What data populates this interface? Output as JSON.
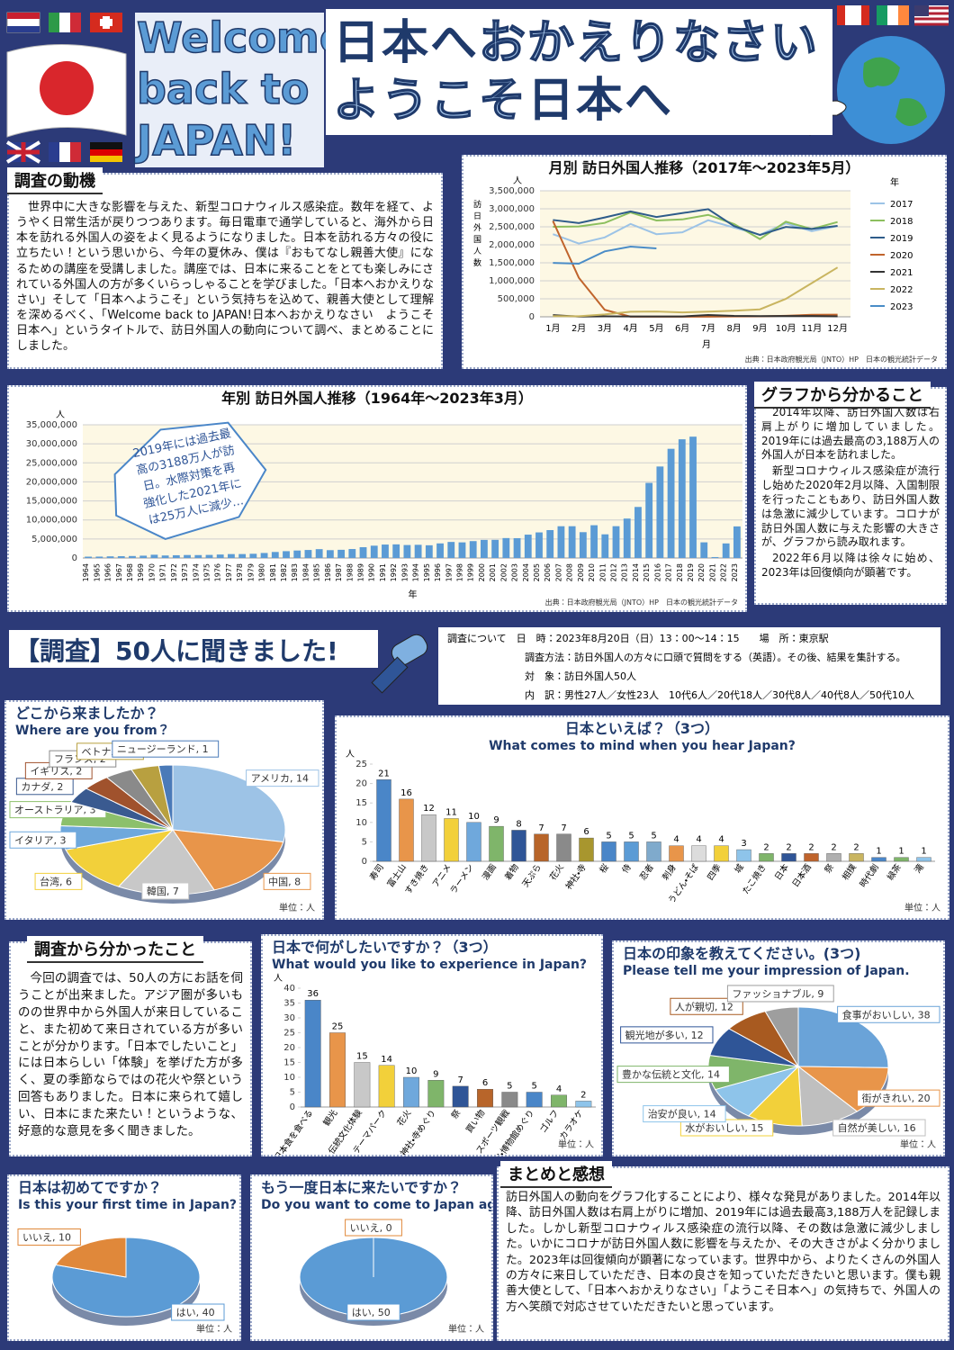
{
  "header": {
    "title_en": [
      "Welcome",
      "back to",
      "JAPAN!"
    ],
    "title_jp": [
      [
        "日本へ",
        "おかえりなさい"
      ],
      [
        "ようこそ",
        "日本へ"
      ]
    ]
  },
  "motive": {
    "heading": "調査の動機",
    "text": "世界中に大きな影響を与えた、新型コロナウィルス感染症。数年を経て、ようやく日常生活が戻りつつあります。毎日電車で通学していると、海外から日本を訪れる外国人の姿をよく見るようになりました。日本を訪れる方々の役に立ちたい！という思いから、今年の夏休み、僕は『おもてなし親善大使』になるための講座を受講しました。講座では、日本に来ることをとても楽しみにされている外国人の方が多くいらっしゃることを学びました。「日本へおかえりなさい」そして「日本へようこそ」という気持ちを込めて、親善大使として理解を深めるべく、「Welcome back to JAPAN!日本へおかえりなさい　ようこそ日本へ」というタイトルで、訪日外国人の動向について調べ、まとめることにしました。"
  },
  "graph_findings": {
    "heading": "グラフから分かること",
    "paragraphs": [
      "2014年以降、訪日外国人数は右肩上がりに増加していました。2019年には過去最高の3,188万人の外国人が日本を訪れました。",
      "新型コロナウィルス感染症が流行し始めた2020年2月以降、入国制限を行ったこともあり、訪日外国人数は急激に減少しています。コロナが訪日外国人数に与えた影響の大きさが、グラフから読み取れます。",
      "2022年6月以降は徐々に始め、2023年は回復傾向が顕著です。"
    ]
  },
  "survey": {
    "heading": "【調査】50人に聞きました!",
    "rows": [
      "調査について　日　時：2023年8月20日（日）13：00～14：15　　場　所：東京駅",
      "調査方法：訪日外国人の方々に口頭で質問をする（英語）。その後、結果を集計する。",
      "対　象：訪日外国人50人",
      "内　訳：男性27人／女性23人　10代6人／20代18人／30代8人／40代8人／50代10人"
    ]
  },
  "survey_findings": {
    "heading": "調査から分かったこと",
    "text": "今回の調査では、50人の方にお話を伺うことが出来ました。アジア圏が多いものの世界中から外国人が来日していること、また初めて来日されている方が多いことが分かります。「日本でしたいこと」には日本らしい「体験」を挙げた方が多く、夏の季節ならではの花火や祭という回答もありました。日本に来られて嬉しい、日本にまた来たい！というような、好意的な意見を多く聞きました。"
  },
  "summary": {
    "heading": "まとめと感想",
    "text": "訪日外国人の動向をグラフ化することにより、様々な発見がありました。2014年以降、訪日外国人数は右肩上がりに増加、2019年には過去最高3,188万人を記録しました。しかし新型コロナウィルス感染症の流行以降、その数は急激に減少しました。いかにコロナが訪日外国人数に影響を与えたか、その大きさがよく分かりました。2023年は回復傾向が顕著になっています。世界中から、よりたくさんの外国人の方々に来日していただき、日本の良さを知っていただきたいと思います。僕も親善大使として、「日本へおかえりなさい」「ようこそ日本へ」の気持ちで、外国人の方へ笑顔で対応させていただきたいと思っています。"
  },
  "chart_data": [
    {
      "type": "line",
      "title": "月別 訪日外国人推移（2017年～2023年5月）",
      "y_label": "訪日外国人数",
      "y_unit": "人",
      "x_label": "月",
      "legend_title": "年",
      "source": "出典：日本政府観光局（JNTO）HP　日本の観光統計データ",
      "grid": true,
      "legend": "right",
      "categories": [
        "1月",
        "2月",
        "3月",
        "4月",
        "5月",
        "6月",
        "7月",
        "8月",
        "9月",
        "10月",
        "11月",
        "12月"
      ],
      "ylim": [
        0,
        3500000
      ],
      "yticks": [
        0,
        {
          "value": 500000,
          "label": "500,000"
        },
        {
          "value": 1000000,
          "label": "1,000,000"
        },
        {
          "value": 1500000,
          "label": "1,500,000"
        },
        {
          "value": 2000000,
          "label": "2,000,000"
        },
        {
          "value": 2500000,
          "label": "2,500,000"
        },
        {
          "value": 3000000,
          "label": "3,000,000"
        },
        {
          "value": 3500000,
          "label": "3,500,000"
        }
      ],
      "series": [
        {
          "name": "2017",
          "color": "#9cc3e6",
          "values": [
            2295000,
            2036000,
            2205000,
            2579000,
            2295000,
            2346000,
            2682000,
            2478000,
            2280000,
            2595000,
            2378000,
            2521000
          ]
        },
        {
          "name": "2018",
          "color": "#8cbf5e",
          "values": [
            2501000,
            2509000,
            2608000,
            2900000,
            2675000,
            2705000,
            2832000,
            2578000,
            2159000,
            2641000,
            2439000,
            2632000
          ]
        },
        {
          "name": "2019",
          "color": "#2e5c8a",
          "values": [
            2689000,
            2604000,
            2760000,
            2927000,
            2773000,
            2880000,
            2991000,
            2520000,
            2272000,
            2497000,
            2441000,
            2526000
          ]
        },
        {
          "name": "2020",
          "color": "#c0642c",
          "values": [
            2661000,
            1085000,
            194000,
            2900,
            1700,
            2600,
            3800,
            8700,
            13700,
            27400,
            56700,
            58700
          ]
        },
        {
          "name": "2021",
          "color": "#333333",
          "values": [
            46500,
            7400,
            12300,
            10900,
            10000,
            9300,
            51100,
            25900,
            17700,
            22100,
            20700,
            12100
          ]
        },
        {
          "name": "2022",
          "color": "#c9b560",
          "values": [
            17800,
            16700,
            66100,
            139500,
            147000,
            120400,
            144500,
            169900,
            206600,
            498600,
            934500,
            1370100
          ]
        },
        {
          "name": "2023",
          "color": "#4a8cc7",
          "values": [
            1497300,
            1475300,
            1817500,
            1949100,
            1898900,
            null,
            null,
            null,
            null,
            null,
            null,
            null
          ]
        }
      ]
    },
    {
      "type": "bar",
      "title": "年別 訪日外国人推移（1964年～2023年3月）",
      "y_unit": "人",
      "x_label": "年",
      "color": "#5b9bd5",
      "grid": true,
      "source": "出典：日本政府観光局（JNTO）HP　日本の観光統計データ",
      "annotation": [
        "2019年には過去最",
        "高の3188万人が訪",
        "日。水際対策を再",
        "強化した2021年に",
        "は25万人に減少…"
      ],
      "categories": [
        "1964",
        "1965",
        "1966",
        "1967",
        "1968",
        "1969",
        "1970",
        "1971",
        "1972",
        "1973",
        "1974",
        "1975",
        "1976",
        "1977",
        "1978",
        "1979",
        "1980",
        "1981",
        "1982",
        "1983",
        "1984",
        "1985",
        "1986",
        "1987",
        "1988",
        "1989",
        "1990",
        "1991",
        "1992",
        "1993",
        "1994",
        "1995",
        "1996",
        "1997",
        "1998",
        "1999",
        "2000",
        "2001",
        "2002",
        "2003",
        "2004",
        "2005",
        "2006",
        "2007",
        "2008",
        "2009",
        "2010",
        "2011",
        "2012",
        "2013",
        "2014",
        "2015",
        "2016",
        "2017",
        "2018",
        "2019",
        "2020",
        "2021",
        "2022",
        "2023"
      ],
      "values": [
        352832,
        366649,
        432937,
        476771,
        519004,
        608741,
        854419,
        660715,
        723744,
        784691,
        764246,
        811672,
        914772,
        1028140,
        1038875,
        1112606,
        1316632,
        1583043,
        1793164,
        1968461,
        2110346,
        2327047,
        2061526,
        2154864,
        2355412,
        2835064,
        3235860,
        3532651,
        3581540,
        3410447,
        3468055,
        3345274,
        3837113,
        4218208,
        4106057,
        4437863,
        4757146,
        4771555,
        5238963,
        5211725,
        6137905,
        6727926,
        7334077,
        8346969,
        8350835,
        6789658,
        8611175,
        6218752,
        8358105,
        10363904,
        13413467,
        19737409,
        24039700,
        28691073,
        31191856,
        31882049,
        4115828,
        245862,
        3832110,
        8300000
      ],
      "ylim": [
        0,
        35000000
      ],
      "yticks": [
        0,
        {
          "value": 5000000,
          "label": "5,000,000"
        },
        {
          "value": 10000000,
          "label": "10,000,000"
        },
        {
          "value": 15000000,
          "label": "15,000,000"
        },
        {
          "value": 20000000,
          "label": "20,000,000"
        },
        {
          "value": 25000000,
          "label": "25,000,000"
        },
        {
          "value": 30000000,
          "label": "30,000,000"
        },
        {
          "value": 35000000,
          "label": "35,000,000"
        }
      ]
    },
    {
      "type": "pie",
      "title": "どこから来ましたか？",
      "subtitle": "Where are you from？",
      "unit_note": "単位：人",
      "categories": [
        "アメリカ",
        "中国",
        "韓国",
        "台湾",
        "イタリア",
        "オーストラリア",
        "カナダ",
        "イギリス",
        "フランス",
        "ベトナム",
        "ニュージーランド"
      ],
      "values": [
        14,
        8,
        7,
        6,
        3,
        3,
        2,
        2,
        2,
        2,
        1
      ],
      "value_labels": [
        "アメリカ, 14",
        "中国, 8",
        "韓国, 7",
        "台湾, 6",
        "イタリア, 3",
        "オーストラリア, 3",
        "カナダ, 2",
        "イギリス, 2",
        "フランス, 2",
        "ベトナム, 2",
        "ニュージーランド, 1"
      ],
      "colors": [
        "#9dc3e6",
        "#e8954a",
        "#c8c8c8",
        "#f2d03a",
        "#6fa8dc",
        "#8cc06b",
        "#3a5a90",
        "#a0522d",
        "#8a8a8a",
        "#b8a040",
        "#4a7ab8"
      ]
    },
    {
      "type": "bar",
      "title": "日本といえば？（3つ）",
      "subtitle": "What comes to mind when you hear Japan?",
      "y_unit": "人",
      "unit_note": "単位：人",
      "data_labels": true,
      "grid": false,
      "categories": [
        "寿司",
        "富士山",
        "すき焼き",
        "アニメ",
        "ラーメン",
        "漫画",
        "着物",
        "天ぷら",
        "花火",
        "神社・寺",
        "桜",
        "侍",
        "忍者",
        "刺身",
        "うどん・そば",
        "四季",
        "城",
        "たこ焼き",
        "日本",
        "日本酒",
        "祭",
        "相撲",
        "時代劇",
        "緑茶",
        "滝"
      ],
      "values": [
        21,
        16,
        12,
        11,
        10,
        9,
        8,
        7,
        7,
        6,
        5,
        5,
        5,
        4,
        4,
        4,
        3,
        2,
        2,
        2,
        2,
        2,
        1,
        1,
        1
      ],
      "colors": [
        "#4a86c8",
        "#e8954a",
        "#c8c8c8",
        "#f2d03a",
        "#6fa8dc",
        "#7fb56a",
        "#2f5597",
        "#b8652a",
        "#8a8a8a",
        "#a8962e",
        "#4a86c8",
        "#5b9bd5",
        "#7faacc",
        "#e8954a",
        "#dcdcdc",
        "#f2d03a",
        "#8ec4ea",
        "#7fb56a",
        "#2f5597",
        "#c0642c",
        "#b0b0b0",
        "#c9b560",
        "#4a86c8",
        "#7fb56a",
        "#8ec4ea"
      ],
      "ylim": [
        0,
        25
      ],
      "yticks": [
        0,
        5,
        10,
        15,
        20,
        25
      ]
    },
    {
      "type": "bar",
      "title": "日本で何がしたいですか？（3つ）",
      "subtitle": "What would you like to experience in Japan?",
      "y_unit": "人",
      "unit_note": "単位：人",
      "data_labels": true,
      "grid": false,
      "categories": [
        "日本食を食べる",
        "観光",
        "伝統文化体験",
        "テーマパーク",
        "花火",
        "神社・寺めぐり",
        "祭",
        "買い物",
        "スポーツ観戦",
        "美術館・博物館めぐり",
        "ゴルフ",
        "カラオケ"
      ],
      "values": [
        36,
        25,
        15,
        14,
        10,
        9,
        7,
        6,
        5,
        5,
        4,
        2
      ],
      "colors": [
        "#4a86c8",
        "#e8954a",
        "#c8c8c8",
        "#f2d03a",
        "#6fa8dc",
        "#7fb56a",
        "#2f5597",
        "#b8652a",
        "#8a8a8a",
        "#4a86c8",
        "#7fb56a",
        "#8ec4ea"
      ],
      "ylim": [
        0,
        40
      ],
      "yticks": [
        0,
        5,
        10,
        15,
        20,
        25,
        30,
        35,
        40
      ]
    },
    {
      "type": "pie",
      "title": "日本の印象を教えてください。(3つ)",
      "subtitle": "Please tell me your impression of Japan.",
      "unit_note": "単位：人",
      "categories": [
        "食事がおいしい",
        "街がきれい",
        "自然が美しい",
        "水がおいしい",
        "治安が良い",
        "豊かな伝統と文化",
        "観光地が多い",
        "人が親切",
        "ファッショナブル"
      ],
      "values": [
        38,
        20,
        16,
        15,
        14,
        14,
        12,
        12,
        9
      ],
      "value_labels": [
        "食事がおいしい, 38",
        "街がきれい, 20",
        "自然が美しい, 16",
        "水がおいしい, 15",
        "治安が良い, 14",
        "豊かな伝統と文化, 14",
        "観光地が多い, 12",
        "人が親切, 12",
        "ファッショナブル, 9"
      ],
      "colors": [
        "#6aa3d8",
        "#e8954a",
        "#bfbfbf",
        "#f2d03a",
        "#8ec4ea",
        "#7fb56a",
        "#2f5597",
        "#a85a20",
        "#9e9e9e"
      ]
    },
    {
      "type": "pie",
      "title": "日本は初めてですか？",
      "subtitle": "Is this your first time in Japan?",
      "unit_note": "単位：人",
      "categories": [
        "はい",
        "いいえ"
      ],
      "values": [
        40,
        10
      ],
      "value_labels": [
        "はい, 40",
        "いいえ, 10"
      ],
      "colors": [
        "#5b9bd5",
        "#e0883a"
      ]
    },
    {
      "type": "pie",
      "title": "もう一度日本に来たいですか？",
      "subtitle": "Do you want to come to Japan again?",
      "unit_note": "単位：人",
      "categories": [
        "はい",
        "いいえ"
      ],
      "values": [
        50,
        0
      ],
      "value_labels": [
        "はい, 50",
        "いいえ, 0"
      ],
      "colors": [
        "#5b9bd5",
        "#e0883a"
      ]
    }
  ]
}
